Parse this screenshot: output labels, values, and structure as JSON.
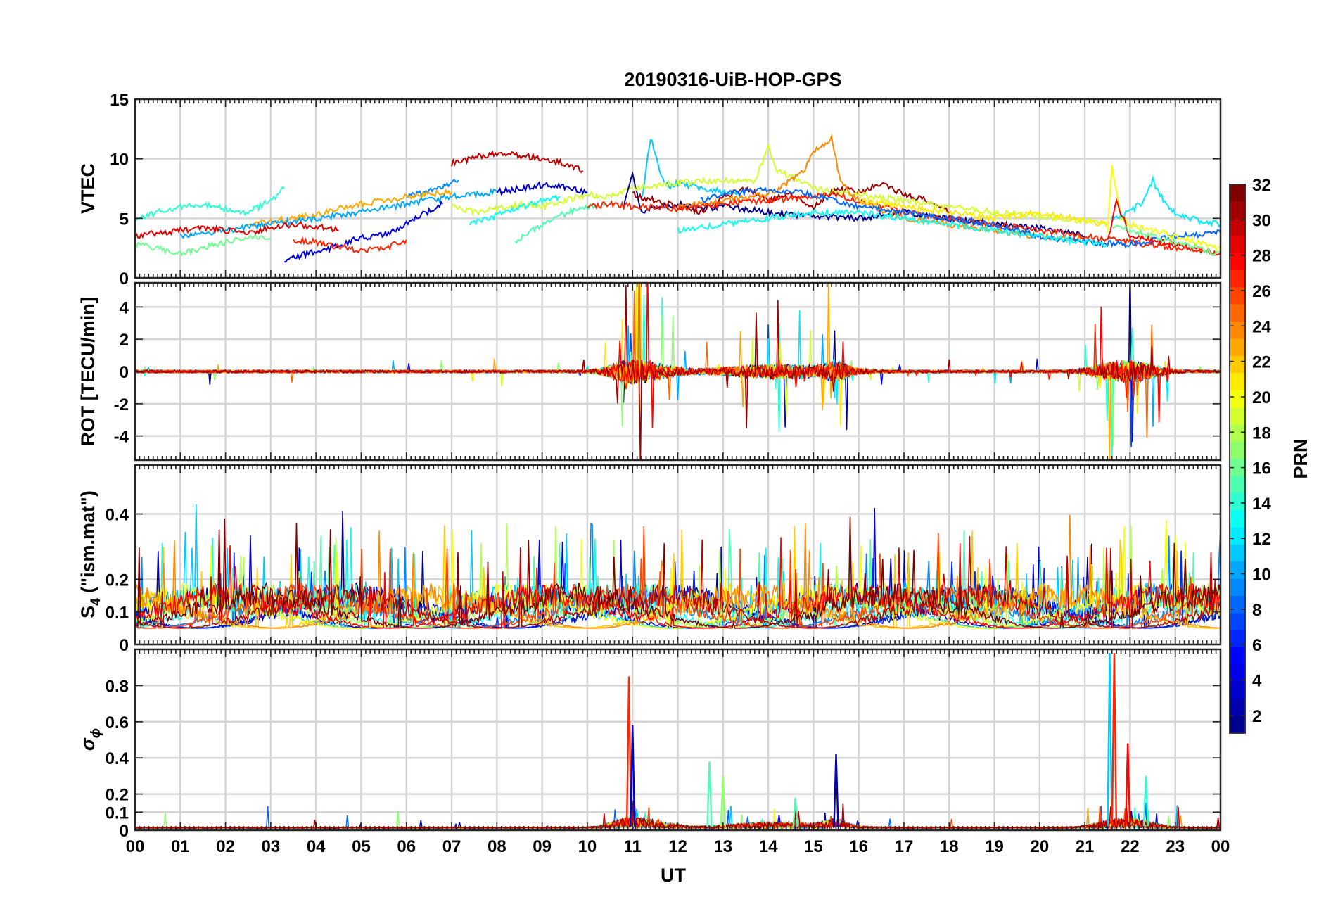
{
  "chart_data": {
    "type": "line",
    "title": "20190316-UiB-HOP-GPS",
    "xlabel": "UT",
    "x_ticks": [
      "00",
      "01",
      "02",
      "03",
      "04",
      "05",
      "06",
      "07",
      "08",
      "09",
      "10",
      "11",
      "12",
      "13",
      "14",
      "15",
      "16",
      "17",
      "18",
      "19",
      "20",
      "21",
      "22",
      "23",
      "00"
    ],
    "xlim": [
      0,
      24
    ],
    "grid": true,
    "colorbar": {
      "label": "PRN",
      "range": [
        1,
        32
      ],
      "ticks": [
        "2",
        "4",
        "6",
        "8",
        "10",
        "12",
        "14",
        "16",
        "18",
        "20",
        "22",
        "24",
        "26",
        "28",
        "30",
        "32"
      ],
      "colormap": "jet",
      "colors": [
        "#00008f",
        "#0000ff",
        "#0080ff",
        "#00ffff",
        "#80ff80",
        "#ffff00",
        "#ff8000",
        "#ff0000",
        "#800000"
      ]
    },
    "panels": [
      {
        "id": "vtec",
        "ylabel": "VTEC",
        "ylim": [
          0,
          15
        ],
        "y_ticks": [
          "0",
          "5",
          "10",
          "15"
        ],
        "series": [
          {
            "prn": 30,
            "x": [
              7.0,
              7.5,
              8.0,
              8.5,
              9.0,
              9.5,
              9.9
            ],
            "y": [
              9.6,
              10.1,
              10.5,
              10.3,
              10.0,
              9.6,
              9.0
            ]
          },
          {
            "prn": 9,
            "x": [
              6.0,
              6.4,
              6.8,
              7.15
            ],
            "y": [
              6.9,
              7.2,
              7.7,
              8.2
            ]
          },
          {
            "prn": 4,
            "x": [
              3.3,
              3.8,
              4.3,
              4.7,
              5.0,
              5.5,
              6.0,
              6.4,
              6.8
            ],
            "y": [
              1.5,
              2.0,
              2.5,
              3.0,
              3.4,
              3.6,
              4.5,
              5.4,
              6.2
            ]
          },
          {
            "prn": 3,
            "x": [
              8.0,
              8.5,
              9.0,
              9.5,
              10.0
            ],
            "y": [
              7.2,
              7.5,
              7.8,
              7.6,
              7.2
            ]
          },
          {
            "prn": 14,
            "x": [
              0,
              0.5,
              1.0,
              1.5,
              2.0,
              2.5,
              3.0,
              3.3
            ],
            "y": [
              4.8,
              5.5,
              6.0,
              6.2,
              5.8,
              5.5,
              6.5,
              7.5
            ]
          },
          {
            "prn": 16,
            "x": [
              0,
              0.5,
              1.0,
              1.5,
              2.0,
              2.6,
              3.0
            ],
            "y": [
              2.8,
              2.5,
              2.0,
              2.5,
              3.0,
              3.5,
              3.2
            ]
          },
          {
            "prn": 23,
            "x": [
              2.5,
              3.0,
              3.5,
              4.0,
              4.5,
              5.0,
              5.5,
              6.0,
              6.5,
              7.0
            ],
            "y": [
              4.5,
              4.8,
              5.0,
              5.3,
              5.8,
              6.2,
              6.5,
              6.8,
              7.0,
              7.2
            ]
          },
          {
            "prn": 10,
            "x": [
              1.0,
              2.0,
              3.0,
              4.0,
              5.0,
              6.0,
              7.0,
              8.0
            ],
            "y": [
              3.5,
              4.0,
              4.5,
              5.0,
              5.5,
              6.2,
              6.8,
              7.2
            ]
          },
          {
            "prn": 27,
            "x": [
              3.5,
              4.0,
              4.5,
              5.0,
              5.5,
              6.0
            ],
            "y": [
              3.2,
              3.0,
              2.6,
              2.3,
              2.5,
              3.2
            ]
          },
          {
            "prn": 29,
            "x": [
              0,
              0.5,
              1.0,
              1.5,
              2.0,
              2.5,
              3.0,
              3.5,
              4.0,
              4.5
            ],
            "y": [
              3.5,
              3.8,
              4.0,
              4.2,
              4.0,
              3.8,
              4.2,
              4.5,
              4.3,
              4.0
            ]
          },
          {
            "prn": 19,
            "x": [
              7.0,
              7.5,
              8.0,
              8.5,
              9.0,
              9.5,
              10.0,
              10.5,
              11.0
            ],
            "y": [
              6.0,
              5.5,
              5.8,
              6.2,
              6.0,
              6.5,
              7.0,
              6.8,
              7.5
            ]
          },
          {
            "prn": 13,
            "x": [
              7.4,
              7.8,
              8.2,
              8.6,
              9.0,
              9.4
            ],
            "y": [
              4.5,
              5.0,
              5.5,
              6.0,
              6.5,
              6.8
            ]
          },
          {
            "prn": 15,
            "x": [
              8.4,
              8.8,
              9.2,
              9.6,
              10.0,
              10.4
            ],
            "y": [
              3.0,
              4.0,
              5.0,
              5.5,
              6.0,
              6.2
            ]
          },
          {
            "prn": 11,
            "x": [
              11.2,
              11.4,
              11.6,
              11.8,
              12.0,
              12.5,
              13.0,
              13.5
            ],
            "y": [
              6.5,
              11.8,
              9.0,
              7.5,
              8.0,
              7.5,
              7.2,
              6.8
            ]
          },
          {
            "prn": 1,
            "x": [
              10.8,
              11.0,
              11.2,
              11.5,
              12.0,
              12.5,
              13.0,
              14.0,
              15.0,
              16.0,
              17.0,
              18.0,
              19.0,
              20.0,
              21.0
            ],
            "y": [
              6.0,
              8.8,
              5.5,
              6.0,
              6.2,
              5.8,
              6.0,
              5.5,
              5.2,
              5.0,
              5.5,
              5.0,
              4.5,
              4.2,
              3.5
            ]
          },
          {
            "prn": 31,
            "x": [
              11.0,
              11.5,
              12.0,
              12.5,
              13.0,
              13.5,
              14.0,
              14.5,
              15.0,
              15.5,
              16.0,
              16.5,
              17.0,
              17.5,
              18.0
            ],
            "y": [
              7.0,
              6.5,
              6.0,
              5.5,
              6.8,
              7.5,
              6.5,
              7.0,
              6.0,
              7.5,
              7.2,
              8.0,
              7.0,
              6.5,
              5.5
            ]
          },
          {
            "prn": 19,
            "x": [
              11.0,
              12.0,
              13.0,
              13.7,
              14.0,
              14.2,
              14.5,
              15.0,
              16.0,
              17.0,
              18.0,
              19.0,
              20.0,
              21.0,
              21.5
            ],
            "y": [
              7.5,
              8.0,
              8.2,
              8.0,
              11.0,
              9.0,
              8.5,
              7.5,
              7.0,
              6.5,
              6.0,
              5.5,
              5.2,
              4.8,
              4.5
            ]
          },
          {
            "prn": 24,
            "x": [
              12.0,
              13.0,
              14.0,
              14.8,
              15.0,
              15.4,
              15.6,
              16.0,
              17.0,
              18.0,
              19.0,
              20.0,
              21.0
            ],
            "y": [
              6.0,
              6.5,
              7.0,
              9.0,
              10.5,
              11.8,
              8.0,
              6.5,
              5.0,
              4.5,
              4.0,
              3.5,
              3.2
            ]
          },
          {
            "prn": 27,
            "x": [
              10.0,
              10.5,
              11.0,
              12.0,
              13.0,
              14.0,
              15.0,
              15.5,
              16.0,
              17.0,
              18.0,
              19.0,
              20.0,
              21.0,
              22.0,
              23.0,
              24.0
            ],
            "y": [
              6.0,
              6.2,
              6.0,
              5.8,
              6.2,
              6.5,
              6.8,
              7.0,
              6.5,
              5.5,
              5.0,
              4.5,
              4.0,
              3.5,
              3.0,
              2.5,
              2.0
            ]
          },
          {
            "prn": 8,
            "x": [
              12.5,
              13.0,
              14.0,
              15.0,
              16.0,
              17.0,
              18.0,
              19.0,
              20.0,
              21.0,
              22.0,
              23.0,
              24.0
            ],
            "y": [
              6.5,
              7.0,
              7.5,
              7.0,
              6.0,
              5.5,
              5.0,
              4.5,
              3.5,
              3.0,
              2.8,
              3.5,
              3.8
            ]
          },
          {
            "prn": 13,
            "x": [
              12.0,
              13.0,
              14.0,
              15.0,
              16.0,
              17.0,
              18.0,
              19.0,
              20.0,
              21.0,
              21.5
            ],
            "y": [
              4.0,
              4.5,
              5.0,
              5.5,
              5.5,
              5.0,
              4.5,
              4.0,
              3.5,
              3.0,
              2.8
            ]
          },
          {
            "prn": 21,
            "x": [
              16.0,
              17.0,
              18.0,
              19.0,
              20.0,
              21.0,
              21.5
            ],
            "y": [
              6.5,
              6.0,
              5.5,
              5.0,
              5.5,
              4.8,
              4.5
            ]
          },
          {
            "prn": 20,
            "x": [
              21.5,
              21.6,
              21.8,
              22.0,
              22.5,
              23.0,
              23.5,
              24.0
            ],
            "y": [
              4.0,
              9.5,
              5.0,
              4.5,
              4.0,
              3.5,
              3.0,
              2.5
            ]
          },
          {
            "prn": 12,
            "x": [
              21.6,
              22.0,
              22.3,
              22.5,
              22.8,
              23.0,
              23.5,
              24.0
            ],
            "y": [
              5.0,
              5.5,
              6.5,
              8.2,
              6.0,
              5.5,
              4.8,
              4.5
            ]
          },
          {
            "prn": 28,
            "x": [
              21.5,
              21.7,
              22.0,
              22.5,
              23.0,
              23.5,
              24.0
            ],
            "y": [
              3.0,
              6.5,
              3.5,
              3.2,
              2.8,
              2.4,
              2.0
            ]
          },
          {
            "prn": 16,
            "x": [
              21.6,
              22.0,
              22.5,
              23.0,
              23.5,
              24.0
            ],
            "y": [
              4.5,
              4.0,
              3.5,
              3.0,
              2.5,
              2.0
            ]
          }
        ]
      },
      {
        "id": "rot",
        "ylabel": "ROT [TECU/min]",
        "ylim": [
          -5.5,
          5.5
        ],
        "y_ticks": [
          "-4",
          "-2",
          "0",
          "2",
          "4"
        ]
      },
      {
        "id": "s4",
        "ylabel_main": "S",
        "ylabel_sub": "4",
        "ylabel_rest": " (\"ism.mat\")",
        "ylim": [
          0,
          0.55
        ],
        "y_ticks": [
          "0",
          "0.1",
          "0.2",
          "0.4"
        ]
      },
      {
        "id": "sigma_phi",
        "ylabel_main": "σ",
        "ylabel_sub": "ϕ",
        "ylim": [
          0,
          1.0
        ],
        "y_ticks": [
          "0",
          "0.1",
          "0.2",
          "0.4",
          "0.6",
          "0.8"
        ]
      }
    ]
  }
}
